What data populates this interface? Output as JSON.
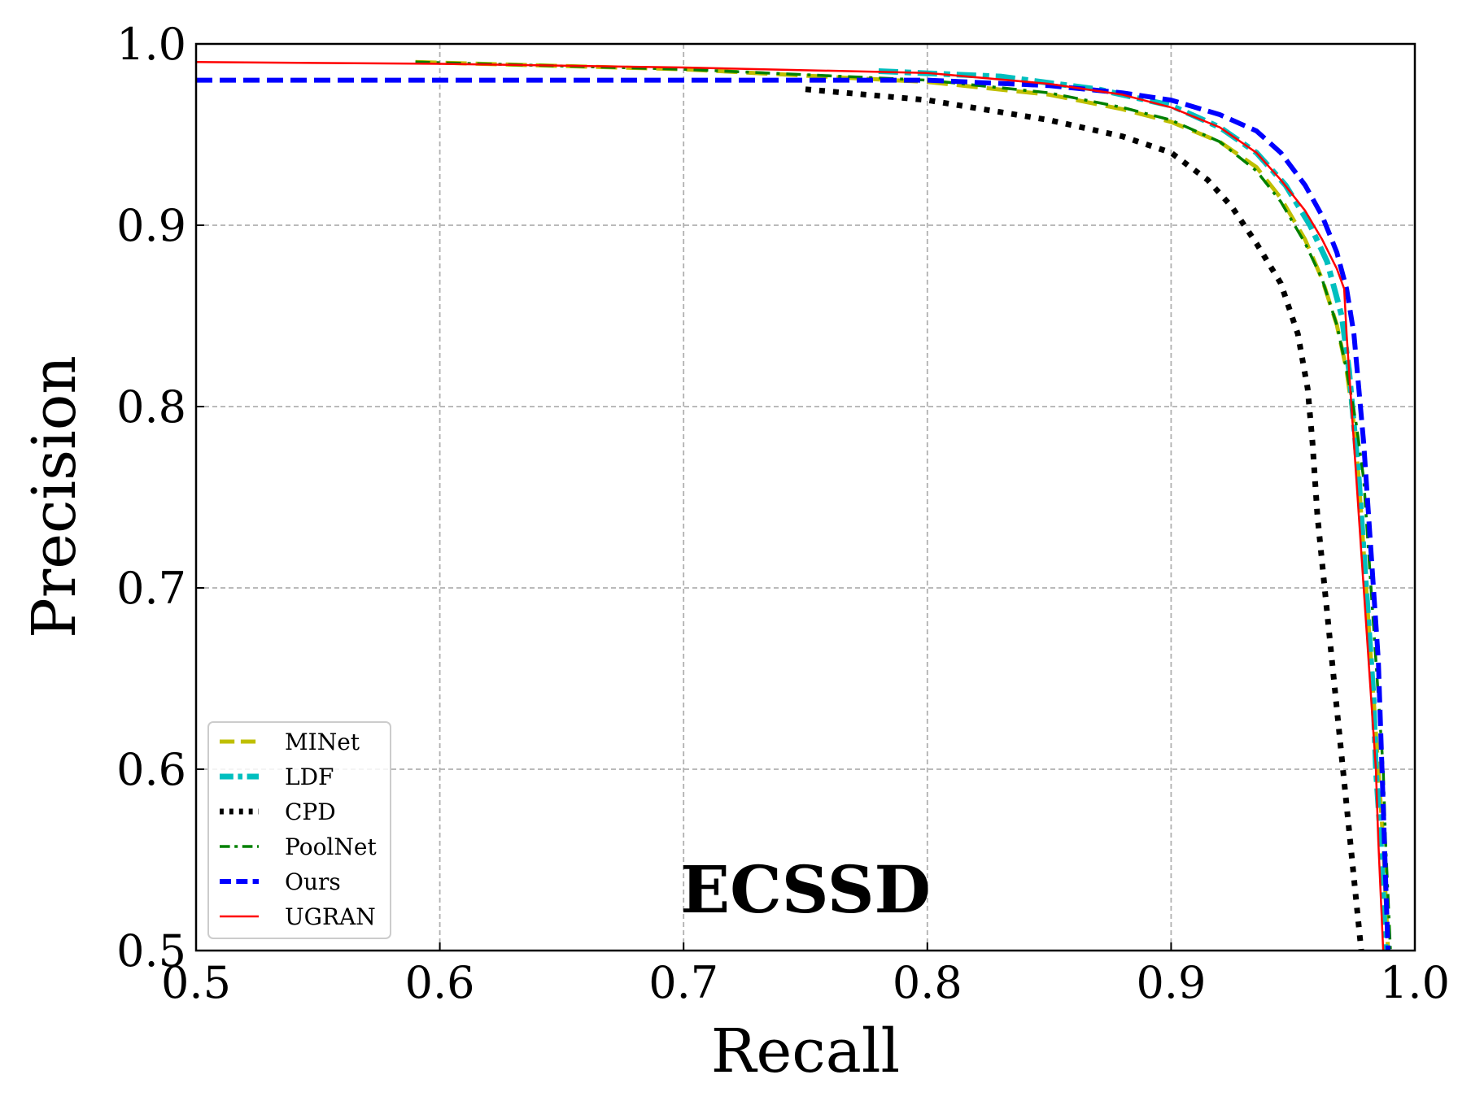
{
  "chart_data": {
    "type": "line",
    "title": "ECSSD",
    "xlabel": "Recall",
    "ylabel": "Precision",
    "xlim": [
      0.5,
      1.0
    ],
    "ylim": [
      0.5,
      1.0
    ],
    "grid": true,
    "legend_position": "bottom-left",
    "x_ticks": [
      "0.5",
      "0.6",
      "0.7",
      "0.8",
      "0.9",
      "1.0"
    ],
    "y_ticks": [
      "0.5",
      "0.6",
      "0.7",
      "0.8",
      "0.9",
      "1.0"
    ],
    "series": [
      {
        "name": "MINet",
        "color": "#bfbf00",
        "style": "long-dash",
        "points": [
          [
            0.59,
            0.99
          ],
          [
            0.7,
            0.986
          ],
          [
            0.8,
            0.979
          ],
          [
            0.85,
            0.972
          ],
          [
            0.88,
            0.964
          ],
          [
            0.9,
            0.957
          ],
          [
            0.92,
            0.946
          ],
          [
            0.935,
            0.932
          ],
          [
            0.945,
            0.915
          ],
          [
            0.955,
            0.892
          ],
          [
            0.962,
            0.87
          ],
          [
            0.968,
            0.845
          ],
          [
            0.972,
            0.82
          ],
          [
            0.975,
            0.79
          ],
          [
            0.977,
            0.76
          ],
          [
            0.979,
            0.72
          ],
          [
            0.981,
            0.68
          ],
          [
            0.983,
            0.64
          ],
          [
            0.985,
            0.6
          ],
          [
            0.987,
            0.56
          ],
          [
            0.988,
            0.53
          ],
          [
            0.989,
            0.5
          ]
        ]
      },
      {
        "name": "LDF",
        "color": "#00bfbf",
        "style": "dash-dot",
        "points": [
          [
            0.78,
            0.985
          ],
          [
            0.83,
            0.982
          ],
          [
            0.87,
            0.975
          ],
          [
            0.9,
            0.966
          ],
          [
            0.92,
            0.954
          ],
          [
            0.935,
            0.94
          ],
          [
            0.947,
            0.922
          ],
          [
            0.957,
            0.9
          ],
          [
            0.964,
            0.88
          ],
          [
            0.97,
            0.85
          ],
          [
            0.973,
            0.82
          ],
          [
            0.975,
            0.79
          ],
          [
            0.977,
            0.76
          ],
          [
            0.979,
            0.72
          ],
          [
            0.981,
            0.68
          ],
          [
            0.983,
            0.64
          ],
          [
            0.984,
            0.6
          ],
          [
            0.986,
            0.56
          ],
          [
            0.987,
            0.53
          ],
          [
            0.988,
            0.5
          ]
        ]
      },
      {
        "name": "CPD",
        "color": "#000000",
        "style": "dotted",
        "points": [
          [
            0.75,
            0.975
          ],
          [
            0.8,
            0.969
          ],
          [
            0.85,
            0.958
          ],
          [
            0.88,
            0.949
          ],
          [
            0.9,
            0.94
          ],
          [
            0.915,
            0.925
          ],
          [
            0.925,
            0.91
          ],
          [
            0.935,
            0.89
          ],
          [
            0.945,
            0.868
          ],
          [
            0.952,
            0.84
          ],
          [
            0.956,
            0.81
          ],
          [
            0.958,
            0.78
          ],
          [
            0.96,
            0.74
          ],
          [
            0.963,
            0.7
          ],
          [
            0.966,
            0.66
          ],
          [
            0.969,
            0.62
          ],
          [
            0.972,
            0.58
          ],
          [
            0.975,
            0.54
          ],
          [
            0.978,
            0.5
          ]
        ]
      },
      {
        "name": "PoolNet",
        "color": "#008000",
        "style": "dash-dot",
        "points": [
          [
            0.59,
            0.99
          ],
          [
            0.7,
            0.986
          ],
          [
            0.8,
            0.98
          ],
          [
            0.85,
            0.973
          ],
          [
            0.88,
            0.965
          ],
          [
            0.9,
            0.958
          ],
          [
            0.92,
            0.946
          ],
          [
            0.935,
            0.93
          ],
          [
            0.945,
            0.913
          ],
          [
            0.955,
            0.89
          ],
          [
            0.962,
            0.87
          ],
          [
            0.968,
            0.845
          ],
          [
            0.972,
            0.82
          ],
          [
            0.976,
            0.79
          ],
          [
            0.979,
            0.76
          ],
          [
            0.981,
            0.72
          ],
          [
            0.983,
            0.68
          ],
          [
            0.985,
            0.64
          ],
          [
            0.987,
            0.6
          ],
          [
            0.988,
            0.56
          ],
          [
            0.989,
            0.53
          ],
          [
            0.99,
            0.5
          ]
        ]
      },
      {
        "name": "Ours",
        "color": "#0000ff",
        "style": "dashed",
        "points": [
          [
            0.5,
            0.98
          ],
          [
            0.6,
            0.98
          ],
          [
            0.7,
            0.98
          ],
          [
            0.75,
            0.98
          ],
          [
            0.8,
            0.98
          ],
          [
            0.85,
            0.977
          ],
          [
            0.88,
            0.973
          ],
          [
            0.9,
            0.969
          ],
          [
            0.92,
            0.961
          ],
          [
            0.935,
            0.952
          ],
          [
            0.945,
            0.94
          ],
          [
            0.955,
            0.922
          ],
          [
            0.962,
            0.905
          ],
          [
            0.968,
            0.885
          ],
          [
            0.972,
            0.865
          ],
          [
            0.975,
            0.84
          ],
          [
            0.977,
            0.81
          ],
          [
            0.979,
            0.78
          ],
          [
            0.981,
            0.74
          ],
          [
            0.983,
            0.7
          ],
          [
            0.985,
            0.66
          ],
          [
            0.986,
            0.62
          ],
          [
            0.987,
            0.58
          ],
          [
            0.988,
            0.54
          ],
          [
            0.989,
            0.5
          ]
        ]
      },
      {
        "name": "UGRAN",
        "color": "#ff0000",
        "style": "solid",
        "points": [
          [
            0.5,
            0.99
          ],
          [
            0.6,
            0.989
          ],
          [
            0.7,
            0.987
          ],
          [
            0.8,
            0.984
          ],
          [
            0.85,
            0.978
          ],
          [
            0.88,
            0.972
          ],
          [
            0.9,
            0.965
          ],
          [
            0.92,
            0.954
          ],
          [
            0.935,
            0.94
          ],
          [
            0.945,
            0.925
          ],
          [
            0.955,
            0.908
          ],
          [
            0.962,
            0.892
          ],
          [
            0.968,
            0.876
          ],
          [
            0.971,
            0.865
          ],
          [
            0.972,
            0.84
          ],
          [
            0.974,
            0.8
          ],
          [
            0.976,
            0.76
          ],
          [
            0.978,
            0.72
          ],
          [
            0.98,
            0.68
          ],
          [
            0.982,
            0.64
          ],
          [
            0.984,
            0.6
          ],
          [
            0.985,
            0.56
          ],
          [
            0.986,
            0.53
          ],
          [
            0.987,
            0.5
          ]
        ]
      }
    ]
  }
}
